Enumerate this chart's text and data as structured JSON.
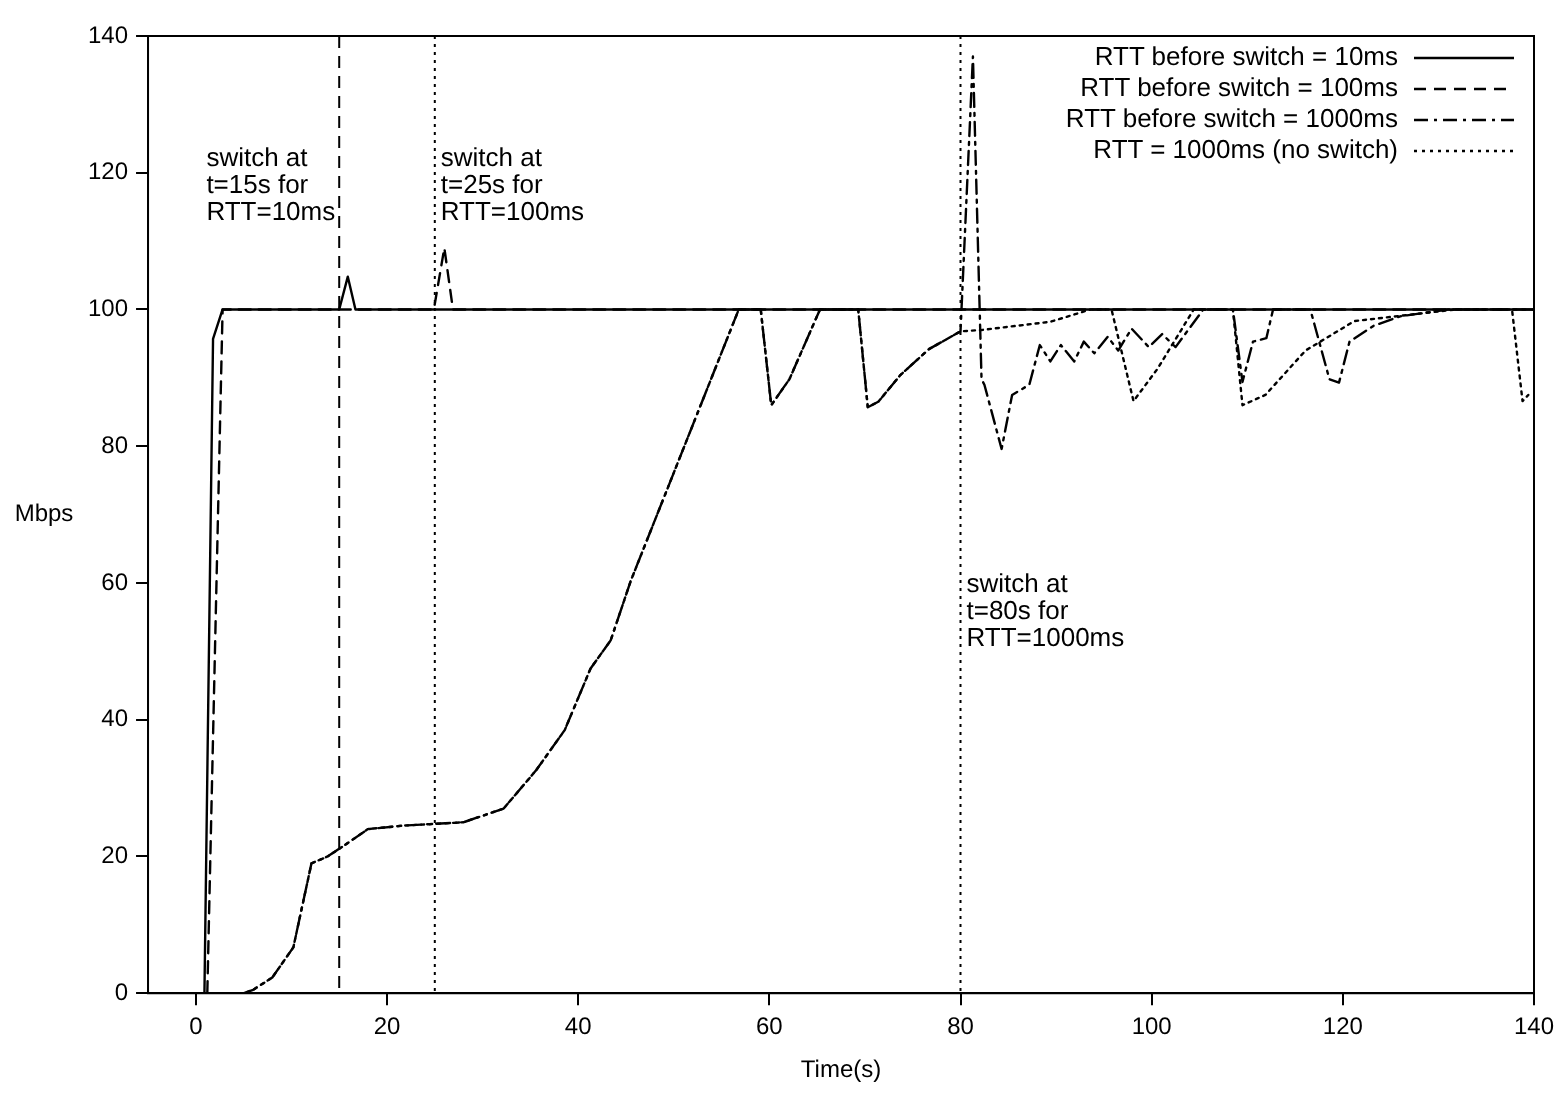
{
  "chart_data": {
    "type": "line",
    "xlabel": "Time(s)",
    "ylabel": "Mbps",
    "xlim": [
      -5,
      140
    ],
    "xticks": [
      0,
      20,
      40,
      60,
      80,
      100,
      120,
      140
    ],
    "ylim": [
      0,
      140
    ],
    "yticks": [
      0,
      20,
      40,
      60,
      80,
      100,
      120,
      140
    ],
    "grid": false,
    "legend": "top right",
    "marker": "none",
    "series": [
      {
        "name": "RTT before switch = 10ms",
        "color": "#000000",
        "line_style": "solid",
        "x": [
          0.9,
          1.8,
          2.8,
          15,
          15.9,
          16.7,
          140
        ],
        "values": [
          0,
          95.7,
          100,
          100,
          104.8,
          100,
          100
        ]
      },
      {
        "name": "RTT before switch = 100ms",
        "color": "#000000",
        "line_style": "dashed",
        "x": [
          1.2,
          2.8,
          24.9,
          26,
          26.9,
          140
        ],
        "values": [
          0,
          100,
          100,
          109,
          100,
          100
        ]
      },
      {
        "name": "RTT before switch = 1000ms",
        "color": "#000000",
        "line_style": "dashdot",
        "x": [
          2,
          5,
          6,
          8,
          10.2,
          12.1,
          13.8,
          15.2,
          18,
          21.6,
          28,
          32.2,
          35.6,
          38.6,
          41.3,
          43.4,
          45.5,
          56.8,
          59.1,
          60.2,
          62.1,
          65.3,
          69.3,
          70.3,
          71.4,
          73.7,
          76.7,
          80,
          81.3,
          82.2,
          82.5,
          84.3,
          85.4,
          87.2,
          88.3,
          89.4,
          90.5,
          91.9,
          92.9,
          94,
          95.4,
          96.5,
          97.9,
          99.7,
          101.1,
          102.5,
          105.4,
          108.5,
          109.5,
          110.6,
          112,
          112.7,
          116.6,
          118.6,
          119.6,
          120.7,
          123.2,
          126,
          131,
          140
        ],
        "values": [
          0,
          0,
          0.5,
          2.3,
          6.7,
          19,
          20,
          21.3,
          24,
          24.5,
          25,
          27,
          32.6,
          38.5,
          47.5,
          51.6,
          60.3,
          100,
          100,
          86,
          89.8,
          100,
          100,
          85.7,
          86.5,
          90.4,
          94.2,
          96.8,
          137,
          89.8,
          89,
          79.6,
          87.5,
          89,
          94.8,
          92.4,
          94.8,
          92.4,
          95.3,
          93.6,
          96,
          94,
          97.2,
          94.5,
          96.4,
          94.5,
          100,
          100,
          89.4,
          95.3,
          95.8,
          100,
          100,
          89.8,
          89.3,
          95.3,
          97.6,
          99,
          100,
          100
        ]
      },
      {
        "name": "RTT = 1000ms (no switch)",
        "color": "#000000",
        "line_style": "dotted",
        "x": [
          2,
          5,
          6,
          8,
          10.2,
          12.1,
          13.8,
          15.2,
          18,
          21.6,
          28,
          32.2,
          35.6,
          38.6,
          41.3,
          43.4,
          45.5,
          56.8,
          59.1,
          60.2,
          62.1,
          65.3,
          69.3,
          70.3,
          71.4,
          73.7,
          76.7,
          80,
          82.2,
          89.4,
          93.6,
          95.8,
          98.1,
          100.6,
          104.4,
          108.5,
          109.5,
          111.9,
          116.1,
          121.2,
          131.8,
          137.7,
          138.8,
          139.4
        ],
        "values": [
          0,
          0,
          0.5,
          2.3,
          6.7,
          19,
          20,
          21.3,
          24,
          24.5,
          25,
          27,
          32.6,
          38.5,
          47.5,
          51.6,
          60.3,
          100,
          100,
          86,
          89.8,
          100,
          100,
          85.7,
          86.5,
          90.4,
          94.2,
          96.8,
          97,
          98.2,
          100,
          100,
          86.6,
          91.3,
          100,
          100,
          86,
          87.5,
          94,
          98.3,
          100,
          100,
          86.6,
          87.5
        ]
      }
    ],
    "ref_lines": [
      {
        "axis": "x",
        "value": 15,
        "color": "#000000",
        "line_style": "dashed",
        "label": "switch at\nt=15s for\nRTT=10ms"
      },
      {
        "axis": "x",
        "value": 25,
        "color": "#000000",
        "line_style": "dotted",
        "label": "switch at\nt=25s for\nRTT=100ms"
      },
      {
        "axis": "x",
        "value": 80,
        "color": "#000000",
        "line_style": "dotted",
        "label": "switch at\nt=80s for\nRTT=1000ms"
      }
    ]
  }
}
